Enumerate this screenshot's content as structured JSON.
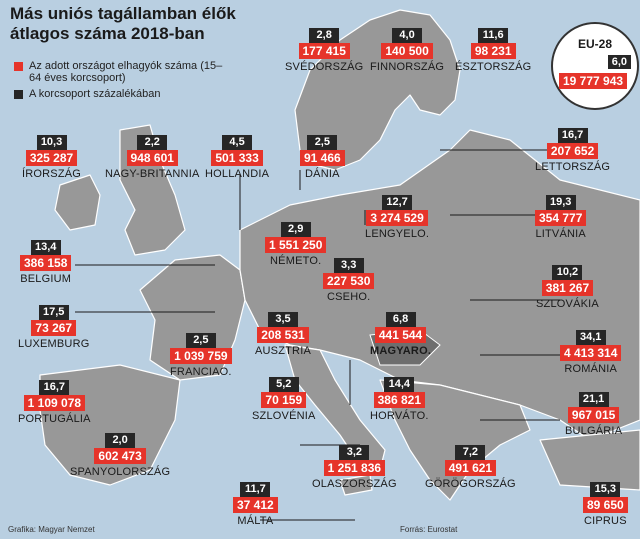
{
  "title": {
    "line1": "Más uniós tagállamban élők",
    "line2": "átlagos száma 2018-ban"
  },
  "legend": {
    "red": "Az adott országot elhagyók száma (15–64 éves korcsoport)",
    "black": "A korcsoport százalékában",
    "red_color": "#e6342a",
    "black_color": "#262626"
  },
  "eu28": {
    "title": "EU-28",
    "pct": "6,0",
    "count": "19 777 943"
  },
  "countries": [
    {
      "name": "SVÉDORSZÁG",
      "pct": "2,8",
      "count": "177 415"
    },
    {
      "name": "FINNORSZÁG",
      "pct": "4,0",
      "count": "140 500"
    },
    {
      "name": "ÉSZTORSZÁG",
      "pct": "11,6",
      "count": "98 231"
    },
    {
      "name": "ÍRORSZÁG",
      "pct": "10,3",
      "count": "325 287"
    },
    {
      "name": "NAGY-BRITANNIA",
      "pct": "2,2",
      "count": "948 601"
    },
    {
      "name": "HOLLANDIA",
      "pct": "4,5",
      "count": "501 333"
    },
    {
      "name": "DÁNIA",
      "pct": "2,5",
      "count": "91 466"
    },
    {
      "name": "LETTORSZÁG",
      "pct": "16,7",
      "count": "207 652"
    },
    {
      "name": "LENGYELO.",
      "pct": "12,7",
      "count": "3 274 529"
    },
    {
      "name": "LITVÁNIA",
      "pct": "19,3",
      "count": "354 777"
    },
    {
      "name": "NÉMETO.",
      "pct": "2,9",
      "count": "1 551 250"
    },
    {
      "name": "BELGIUM",
      "pct": "13,4",
      "count": "386 158"
    },
    {
      "name": "CSEHO.",
      "pct": "3,3",
      "count": "227 530"
    },
    {
      "name": "SZLOVÁKIA",
      "pct": "10,2",
      "count": "381 267"
    },
    {
      "name": "LUXEMBURG",
      "pct": "17,5",
      "count": "73 267"
    },
    {
      "name": "AUSZTRIA",
      "pct": "3,5",
      "count": "208 531"
    },
    {
      "name": "MAGYARO.",
      "pct": "6,8",
      "count": "441 544"
    },
    {
      "name": "FRANCIAO.",
      "pct": "2,5",
      "count": "1 039 759"
    },
    {
      "name": "ROMÁNIA",
      "pct": "34,1",
      "count": "4 413 314"
    },
    {
      "name": "PORTUGÁLIA",
      "pct": "16,7",
      "count": "1 109 078"
    },
    {
      "name": "SZLOVÉNIA",
      "pct": "5,2",
      "count": "70 159"
    },
    {
      "name": "HORVÁTO.",
      "pct": "14,4",
      "count": "386 821"
    },
    {
      "name": "BULGÁRIA",
      "pct": "21,1",
      "count": "967 015"
    },
    {
      "name": "SPANYOLORSZÁG",
      "pct": "2,0",
      "count": "602 473"
    },
    {
      "name": "OLASZORSZÁG",
      "pct": "3,2",
      "count": "1 251 836"
    },
    {
      "name": "GÖRÖGORSZÁG",
      "pct": "7,2",
      "count": "491 621"
    },
    {
      "name": "MÁLTA",
      "pct": "11,7",
      "count": "37 412"
    },
    {
      "name": "CIPRUS",
      "pct": "15,3",
      "count": "89 650"
    }
  ],
  "credit_left": "Grafika: Magyar Nemzet",
  "credit_right": "Forrás: Eurostat"
}
